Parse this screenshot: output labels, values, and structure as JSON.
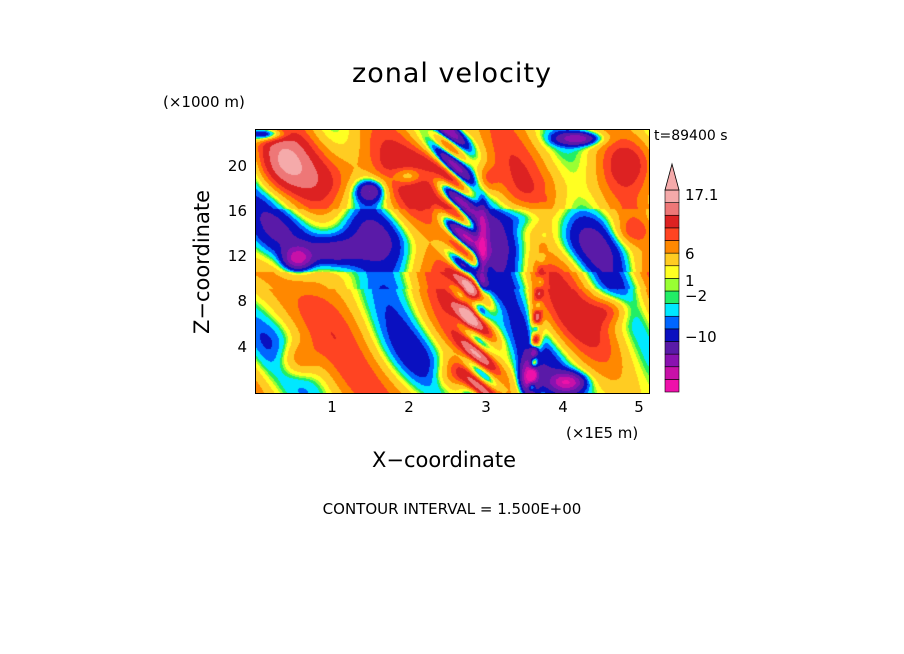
{
  "chart_data": {
    "type": "heatmap",
    "title": "zonal velocity",
    "xlabel": "X−coordinate",
    "ylabel": "Z−coordinate",
    "x_unit": "(×1E5 m)",
    "y_unit": "(×1000 m)",
    "time_label": "t=89400 s",
    "footer": "CONTOUR INTERVAL = 1.500E+00",
    "xlim": [
      0.02,
      5.1
    ],
    "ylim": [
      0,
      22.8
    ],
    "x_ticks": [
      "1",
      "2",
      "3",
      "4",
      "5"
    ],
    "y_ticks": [
      "4",
      "8",
      "12",
      "16",
      "20"
    ],
    "colorbar": {
      "levels": [
        -16,
        -13,
        -10,
        -7,
        -4,
        -2,
        -1,
        0,
        0.5,
        1,
        2,
        4,
        6,
        8,
        11,
        14,
        17.1
      ],
      "colors": [
        "#ee11aa",
        "#c811a8",
        "#8a12b0",
        "#5a1aa8",
        "#0a10c0",
        "#0066ff",
        "#00e8ff",
        "#22ee66",
        "#99ff33",
        "#ffff22",
        "#ffcc22",
        "#ff8800",
        "#ff4422",
        "#dd2222",
        "#ee7777",
        "#f5aaaa"
      ],
      "labels": [
        {
          "text": "17.1",
          "value": 17.1
        },
        {
          "text": "6",
          "value": 6
        },
        {
          "text": "1",
          "value": 1
        },
        {
          "text": "−2",
          "value": -2
        },
        {
          "text": "−10",
          "value": -10
        }
      ]
    }
  }
}
